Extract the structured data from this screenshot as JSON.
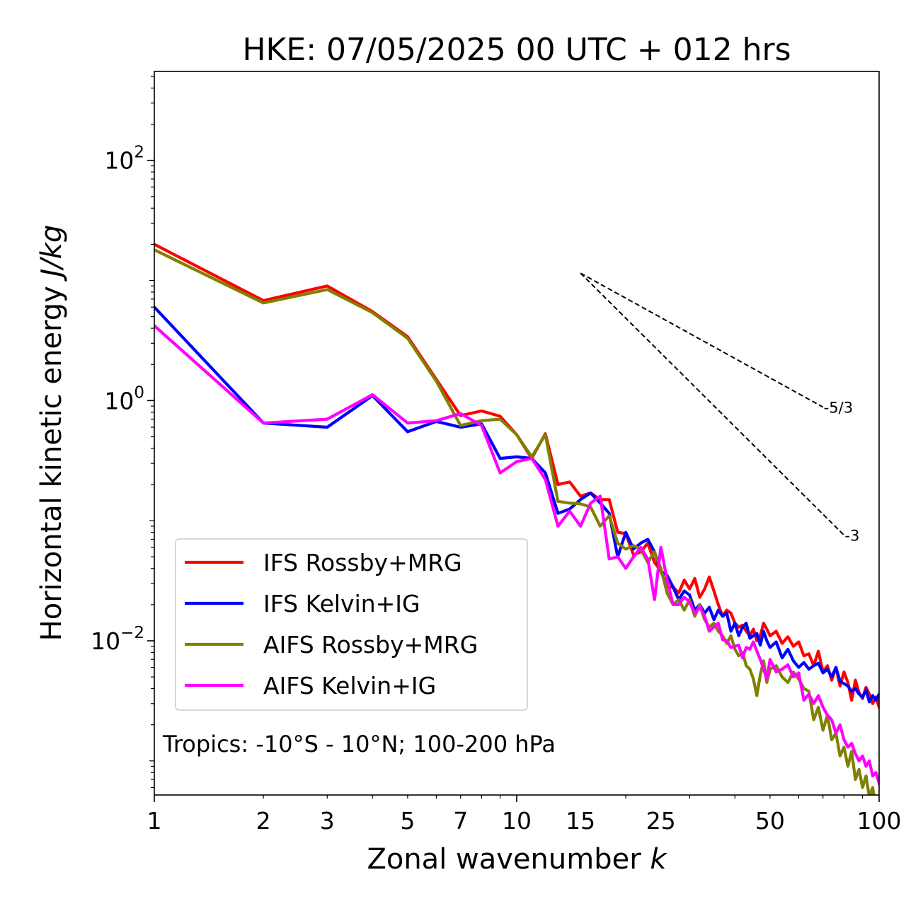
{
  "chart_data": {
    "type": "line",
    "title": "HKE: 07/05/2025 00 UTC + 012 hrs",
    "xlabel": "Zonal wavenumber",
    "xlabel_symbol": "k",
    "ylabel": "Horizontal kinetic energy",
    "ylabel_unit": "J/kg",
    "xscale": "log",
    "yscale": "log",
    "xlim": [
      1,
      100
    ],
    "ylim": [
      0.00052,
      550
    ],
    "x_ticks": [
      {
        "value": 1,
        "label": "1"
      },
      {
        "value": 2,
        "label": "2"
      },
      {
        "value": 3,
        "label": "3"
      },
      {
        "value": 5,
        "label": "5"
      },
      {
        "value": 7,
        "label": "7"
      },
      {
        "value": 10,
        "label": "10"
      },
      {
        "value": 15,
        "label": "15"
      },
      {
        "value": 25,
        "label": "25"
      },
      {
        "value": 50,
        "label": "50"
      },
      {
        "value": 100,
        "label": "100"
      }
    ],
    "y_ticks": [
      {
        "value": 100,
        "base": "10",
        "exp": "2"
      },
      {
        "value": 1,
        "base": "10",
        "exp": "0"
      },
      {
        "value": 0.01,
        "base": "10",
        "exp": "−2"
      }
    ],
    "grid": false,
    "legend_position": "lower-left",
    "annotation": "Tropics: -10°S - 10°N; 100-200 hPa",
    "reference_slopes": [
      {
        "label": "-5/3",
        "slope": -1.6667,
        "x_start": 15,
        "y_start": 11.5,
        "x_end": 70
      },
      {
        "label": "-3",
        "slope": -3,
        "x_start": 15,
        "y_start": 11.5,
        "x_end": 80
      }
    ],
    "series": [
      {
        "name": "IFS Rossby+MRG",
        "color": "#ff0000",
        "points": [
          [
            1,
            20.0
          ],
          [
            2,
            6.8
          ],
          [
            3,
            9.0
          ],
          [
            4,
            5.5
          ],
          [
            5,
            3.4
          ],
          [
            6,
            1.5
          ],
          [
            7,
            0.75
          ],
          [
            8,
            0.82
          ],
          [
            9,
            0.74
          ],
          [
            10,
            0.52
          ],
          [
            11,
            0.33
          ],
          [
            12,
            0.53
          ],
          [
            13,
            0.2
          ],
          [
            14,
            0.21
          ],
          [
            15,
            0.16
          ],
          [
            16,
            0.17
          ],
          [
            17,
            0.15
          ],
          [
            18,
            0.15
          ],
          [
            19,
            0.08
          ],
          [
            20,
            0.078
          ],
          [
            21,
            0.052
          ],
          [
            22,
            0.055
          ],
          [
            23,
            0.065
          ],
          [
            24,
            0.045
          ],
          [
            25,
            0.038
          ],
          [
            26,
            0.028
          ],
          [
            27,
            0.028
          ],
          [
            28,
            0.025
          ],
          [
            29,
            0.032
          ],
          [
            30,
            0.027
          ],
          [
            31,
            0.033
          ],
          [
            32,
            0.023
          ],
          [
            33,
            0.027
          ],
          [
            34,
            0.034
          ],
          [
            35,
            0.026
          ],
          [
            36,
            0.02
          ],
          [
            37,
            0.016
          ],
          [
            38,
            0.018
          ],
          [
            39,
            0.017
          ],
          [
            40,
            0.014
          ],
          [
            41,
            0.013
          ],
          [
            42,
            0.0135
          ],
          [
            43,
            0.012
          ],
          [
            44,
            0.011
          ],
          [
            45,
            0.0125
          ],
          [
            46,
            0.01
          ],
          [
            47,
            0.011
          ],
          [
            48,
            0.014
          ],
          [
            49,
            0.0125
          ],
          [
            50,
            0.011
          ],
          [
            52,
            0.012
          ],
          [
            54,
            0.0095
          ],
          [
            56,
            0.0108
          ],
          [
            58,
            0.009
          ],
          [
            60,
            0.0098
          ],
          [
            62,
            0.0075
          ],
          [
            64,
            0.0078
          ],
          [
            66,
            0.0062
          ],
          [
            68,
            0.0082
          ],
          [
            70,
            0.0055
          ],
          [
            72,
            0.0062
          ],
          [
            74,
            0.0047
          ],
          [
            76,
            0.006
          ],
          [
            78,
            0.0042
          ],
          [
            80,
            0.0055
          ],
          [
            82,
            0.0045
          ],
          [
            84,
            0.0032
          ],
          [
            86,
            0.0047
          ],
          [
            88,
            0.0037
          ],
          [
            90,
            0.0033
          ],
          [
            92,
            0.0041
          ],
          [
            94,
            0.0036
          ],
          [
            96,
            0.003
          ],
          [
            98,
            0.0034
          ],
          [
            100,
            0.0028
          ]
        ]
      },
      {
        "name": "IFS Kelvin+IG",
        "color": "#0000ff",
        "points": [
          [
            1,
            6.0
          ],
          [
            2,
            0.65
          ],
          [
            3,
            0.6
          ],
          [
            4,
            1.1
          ],
          [
            5,
            0.55
          ],
          [
            6,
            0.67
          ],
          [
            7,
            0.6
          ],
          [
            8,
            0.64
          ],
          [
            9,
            0.33
          ],
          [
            10,
            0.34
          ],
          [
            11,
            0.33
          ],
          [
            12,
            0.25
          ],
          [
            13,
            0.115
          ],
          [
            14,
            0.125
          ],
          [
            15,
            0.15
          ],
          [
            16,
            0.17
          ],
          [
            17,
            0.14
          ],
          [
            18,
            0.115
          ],
          [
            19,
            0.05
          ],
          [
            20,
            0.08
          ],
          [
            21,
            0.058
          ],
          [
            22,
            0.065
          ],
          [
            23,
            0.07
          ],
          [
            24,
            0.055
          ],
          [
            25,
            0.038
          ],
          [
            26,
            0.035
          ],
          [
            27,
            0.028
          ],
          [
            28,
            0.022
          ],
          [
            29,
            0.026
          ],
          [
            30,
            0.024
          ],
          [
            31,
            0.018
          ],
          [
            32,
            0.02
          ],
          [
            33,
            0.017
          ],
          [
            34,
            0.019
          ],
          [
            35,
            0.015
          ],
          [
            36,
            0.018
          ],
          [
            37,
            0.016
          ],
          [
            38,
            0.017
          ],
          [
            39,
            0.012
          ],
          [
            40,
            0.014
          ],
          [
            41,
            0.011
          ],
          [
            42,
            0.013
          ],
          [
            43,
            0.014
          ],
          [
            44,
            0.0105
          ],
          [
            45,
            0.011
          ],
          [
            46,
            0.0115
          ],
          [
            47,
            0.0092
          ],
          [
            48,
            0.012
          ],
          [
            49,
            0.01
          ],
          [
            50,
            0.0088
          ],
          [
            52,
            0.0098
          ],
          [
            54,
            0.0072
          ],
          [
            56,
            0.0085
          ],
          [
            58,
            0.0068
          ],
          [
            60,
            0.006
          ],
          [
            62,
            0.0066
          ],
          [
            64,
            0.0058
          ],
          [
            66,
            0.0062
          ],
          [
            68,
            0.0065
          ],
          [
            70,
            0.0054
          ],
          [
            72,
            0.0058
          ],
          [
            74,
            0.005
          ],
          [
            76,
            0.006
          ],
          [
            78,
            0.0046
          ],
          [
            80,
            0.0044
          ],
          [
            82,
            0.0042
          ],
          [
            84,
            0.0038
          ],
          [
            86,
            0.004
          ],
          [
            88,
            0.0036
          ],
          [
            90,
            0.0034
          ],
          [
            92,
            0.0039
          ],
          [
            94,
            0.0031
          ],
          [
            96,
            0.0035
          ],
          [
            98,
            0.0032
          ],
          [
            100,
            0.0036
          ]
        ]
      },
      {
        "name": "AIFS Rossby+MRG",
        "color": "#808000",
        "points": [
          [
            1,
            18.0
          ],
          [
            2,
            6.5
          ],
          [
            3,
            8.4
          ],
          [
            4,
            5.4
          ],
          [
            5,
            3.3
          ],
          [
            6,
            1.45
          ],
          [
            7,
            0.62
          ],
          [
            8,
            0.68
          ],
          [
            9,
            0.7
          ],
          [
            10,
            0.52
          ],
          [
            11,
            0.34
          ],
          [
            12,
            0.52
          ],
          [
            13,
            0.145
          ],
          [
            14,
            0.14
          ],
          [
            15,
            0.138
          ],
          [
            16,
            0.13
          ],
          [
            17,
            0.09
          ],
          [
            18,
            0.11
          ],
          [
            19,
            0.065
          ],
          [
            20,
            0.058
          ],
          [
            21,
            0.062
          ],
          [
            22,
            0.058
          ],
          [
            23,
            0.045
          ],
          [
            24,
            0.055
          ],
          [
            25,
            0.04
          ],
          [
            26,
            0.025
          ],
          [
            27,
            0.02
          ],
          [
            28,
            0.022
          ],
          [
            29,
            0.018
          ],
          [
            30,
            0.022
          ],
          [
            31,
            0.016
          ],
          [
            32,
            0.02
          ],
          [
            33,
            0.015
          ],
          [
            34,
            0.013
          ],
          [
            35,
            0.014
          ],
          [
            36,
            0.012
          ],
          [
            37,
            0.011
          ],
          [
            38,
            0.0095
          ],
          [
            39,
            0.011
          ],
          [
            40,
            0.0085
          ],
          [
            41,
            0.0075
          ],
          [
            42,
            0.008
          ],
          [
            43,
            0.0062
          ],
          [
            44,
            0.0058
          ],
          [
            45,
            0.0048
          ],
          [
            46,
            0.0035
          ],
          [
            47,
            0.0052
          ],
          [
            48,
            0.0068
          ],
          [
            49,
            0.0045
          ],
          [
            50,
            0.0058
          ],
          [
            52,
            0.0062
          ],
          [
            54,
            0.005
          ],
          [
            56,
            0.0045
          ],
          [
            58,
            0.0055
          ],
          [
            60,
            0.0048
          ],
          [
            62,
            0.004
          ],
          [
            64,
            0.0038
          ],
          [
            66,
            0.0022
          ],
          [
            68,
            0.0028
          ],
          [
            70,
            0.0018
          ],
          [
            72,
            0.0024
          ],
          [
            74,
            0.0015
          ],
          [
            76,
            0.0017
          ],
          [
            78,
            0.0011
          ],
          [
            80,
            0.0013
          ],
          [
            82,
            0.0009
          ],
          [
            84,
            0.0012
          ],
          [
            86,
            0.0007
          ],
          [
            88,
            0.00085
          ],
          [
            90,
            0.0006
          ],
          [
            92,
            0.00075
          ],
          [
            94,
            0.0005
          ],
          [
            96,
            0.0006
          ],
          [
            98,
            0.0004
          ],
          [
            100,
            0.00045
          ]
        ]
      },
      {
        "name": "AIFS Kelvin+IG",
        "color": "#ff00ff",
        "points": [
          [
            1,
            4.2
          ],
          [
            2,
            0.65
          ],
          [
            3,
            0.7
          ],
          [
            4,
            1.12
          ],
          [
            5,
            0.65
          ],
          [
            6,
            0.68
          ],
          [
            7,
            0.78
          ],
          [
            8,
            0.62
          ],
          [
            9,
            0.25
          ],
          [
            10,
            0.31
          ],
          [
            11,
            0.33
          ],
          [
            12,
            0.22
          ],
          [
            13,
            0.09
          ],
          [
            14,
            0.12
          ],
          [
            15,
            0.09
          ],
          [
            16,
            0.14
          ],
          [
            17,
            0.16
          ],
          [
            18,
            0.048
          ],
          [
            19,
            0.05
          ],
          [
            20,
            0.04
          ],
          [
            21,
            0.05
          ],
          [
            22,
            0.06
          ],
          [
            23,
            0.048
          ],
          [
            24,
            0.022
          ],
          [
            25,
            0.06
          ],
          [
            26,
            0.032
          ],
          [
            27,
            0.02
          ],
          [
            28,
            0.02
          ],
          [
            29,
            0.023
          ],
          [
            30,
            0.021
          ],
          [
            31,
            0.017
          ],
          [
            32,
            0.019
          ],
          [
            33,
            0.016
          ],
          [
            34,
            0.012
          ],
          [
            35,
            0.013
          ],
          [
            36,
            0.014
          ],
          [
            37,
            0.0102
          ],
          [
            38,
            0.01
          ],
          [
            39,
            0.0088
          ],
          [
            40,
            0.009
          ],
          [
            41,
            0.0092
          ],
          [
            42,
            0.0072
          ],
          [
            43,
            0.0088
          ],
          [
            44,
            0.0085
          ],
          [
            45,
            0.0098
          ],
          [
            46,
            0.0082
          ],
          [
            47,
            0.007
          ],
          [
            48,
            0.0058
          ],
          [
            49,
            0.0048
          ],
          [
            50,
            0.007
          ],
          [
            52,
            0.0055
          ],
          [
            54,
            0.0058
          ],
          [
            56,
            0.0063
          ],
          [
            58,
            0.005
          ],
          [
            60,
            0.0054
          ],
          [
            62,
            0.0032
          ],
          [
            64,
            0.0036
          ],
          [
            66,
            0.003
          ],
          [
            68,
            0.0035
          ],
          [
            70,
            0.0028
          ],
          [
            72,
            0.0024
          ],
          [
            74,
            0.0022
          ],
          [
            76,
            0.0017
          ],
          [
            78,
            0.002
          ],
          [
            80,
            0.0015
          ],
          [
            82,
            0.0013
          ],
          [
            84,
            0.0014
          ],
          [
            86,
            0.00115
          ],
          [
            88,
            0.001
          ],
          [
            90,
            0.0011
          ],
          [
            92,
            0.0009
          ],
          [
            94,
            0.001
          ],
          [
            96,
            0.00075
          ],
          [
            98,
            0.0008
          ],
          [
            100,
            0.00065
          ]
        ]
      }
    ]
  }
}
